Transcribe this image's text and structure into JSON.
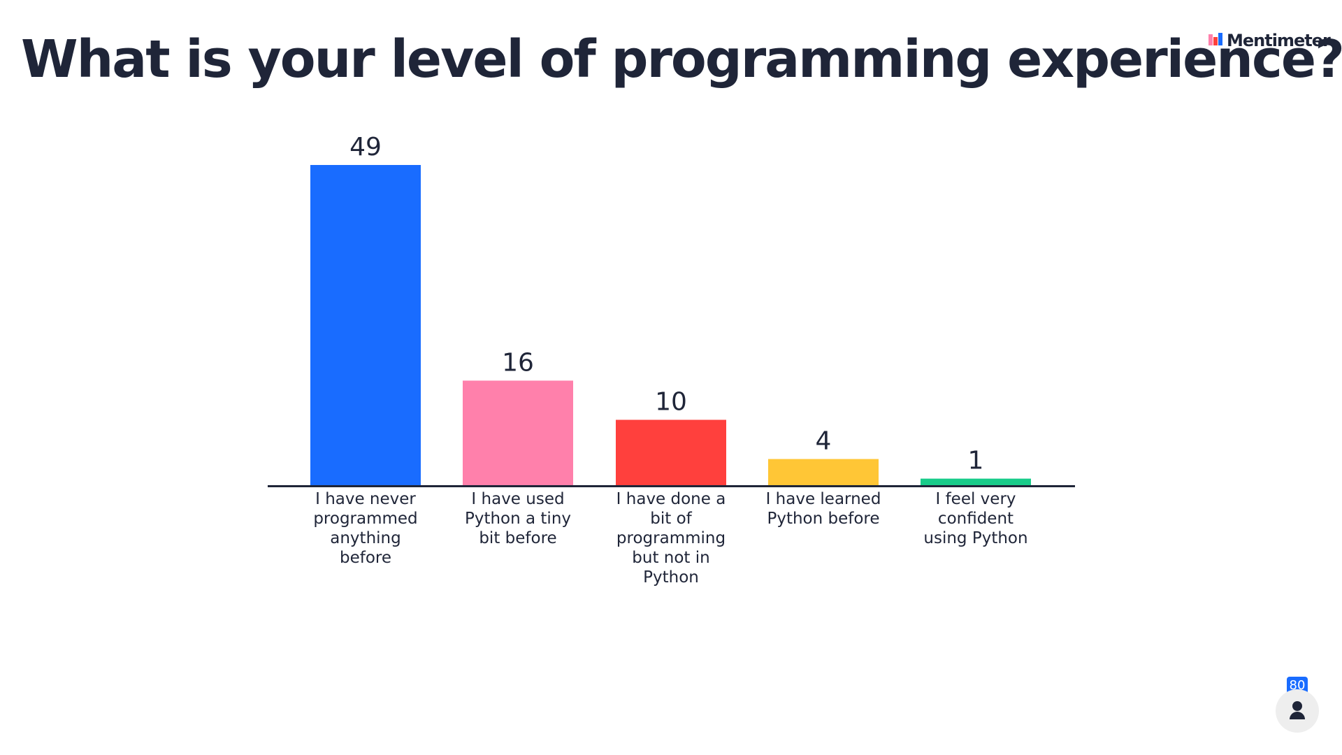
{
  "chart_data": {
    "type": "bar",
    "title": "What is your level of programming experience?",
    "categories": [
      "I have never programmed anything before",
      "I have used Python a tiny bit before",
      "I have done a bit of programming but not in Python",
      "I have learned Python before",
      "I feel very confident using Python"
    ],
    "values": [
      49,
      16,
      10,
      4,
      1
    ],
    "colors": [
      "#196cff",
      "#ff80ab",
      "#ff403d",
      "#ffc636",
      "#19cc8a"
    ]
  },
  "brand": "Mentimeter",
  "participants": 80
}
